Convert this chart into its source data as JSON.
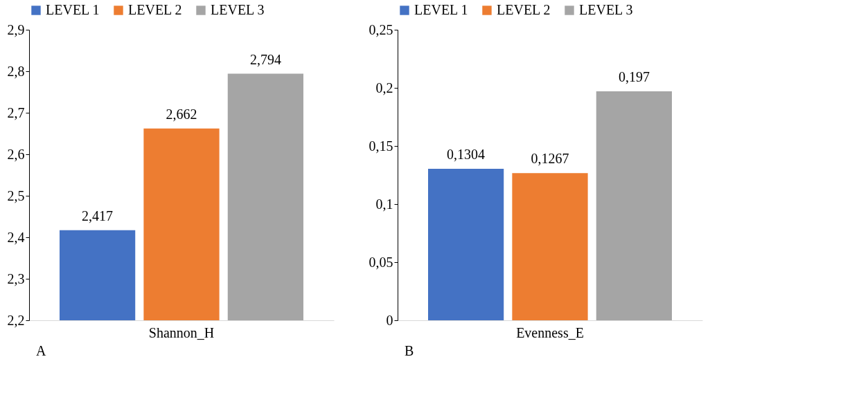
{
  "chart_data": [
    {
      "type": "bar",
      "categories": [
        "Shannon_H"
      ],
      "series": [
        {
          "name": "LEVEL 1",
          "color": "#4472c4",
          "values": [
            2.417
          ],
          "value_labels": [
            "2,417"
          ]
        },
        {
          "name": "LEVEL 2",
          "color": "#ed7d31",
          "values": [
            2.662
          ],
          "value_labels": [
            "2,662"
          ]
        },
        {
          "name": "LEVEL 3",
          "color": "#a5a5a5",
          "values": [
            2.794
          ],
          "value_labels": [
            "2,794"
          ]
        }
      ],
      "ylim": [
        2.2,
        2.9
      ],
      "yticks": [
        {
          "value": 2.2,
          "label": "2,2"
        },
        {
          "value": 2.3,
          "label": "2,3"
        },
        {
          "value": 2.4,
          "label": "2,4"
        },
        {
          "value": 2.5,
          "label": "2,5"
        },
        {
          "value": 2.6,
          "label": "2,6"
        },
        {
          "value": 2.7,
          "label": "2,7"
        },
        {
          "value": 2.8,
          "label": "2,8"
        },
        {
          "value": 2.9,
          "label": "2,9"
        }
      ],
      "annotations": [
        "A"
      ],
      "legend": "top",
      "grid": false
    },
    {
      "type": "bar",
      "categories": [
        "Evenness_E"
      ],
      "series": [
        {
          "name": "LEVEL 1",
          "color": "#4472c4",
          "values": [
            0.1304
          ],
          "value_labels": [
            "0,1304"
          ]
        },
        {
          "name": "LEVEL 2",
          "color": "#ed7d31",
          "values": [
            0.1267
          ],
          "value_labels": [
            "0,1267"
          ]
        },
        {
          "name": "LEVEL 3",
          "color": "#a5a5a5",
          "values": [
            0.197
          ],
          "value_labels": [
            "0,197"
          ]
        }
      ],
      "ylim": [
        0,
        0.25
      ],
      "yticks": [
        0,
        {
          "value": 0.05,
          "label": "0,05"
        },
        {
          "value": 0.1,
          "label": "0,1"
        },
        {
          "value": 0.15,
          "label": "0,15"
        },
        {
          "value": 0.2,
          "label": "0,2"
        },
        {
          "value": 0.25,
          "label": "0,25"
        }
      ],
      "annotations": [
        "B"
      ],
      "legend": "top",
      "grid": false
    }
  ]
}
